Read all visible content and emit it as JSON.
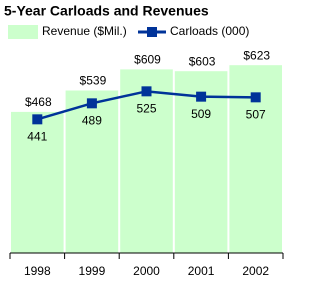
{
  "chart_data": {
    "type": "bar-line",
    "title": "5-Year Carloads and Revenues",
    "categories": [
      "1998",
      "1999",
      "2000",
      "2001",
      "2002"
    ],
    "series": [
      {
        "name": "Revenue ($Mil.)",
        "type": "bar",
        "color": "#ccffcc",
        "values": [
          468,
          539,
          609,
          603,
          623
        ],
        "value_labels": [
          "$468",
          "$539",
          "$609",
          "$603",
          "$623"
        ]
      },
      {
        "name": "Carloads (000)",
        "type": "line",
        "axis": "y2",
        "color": "#003399",
        "values": [
          441,
          489,
          525,
          509,
          507
        ]
      }
    ],
    "ylim": [
      0,
      680
    ],
    "y2lim": [
      40,
      655
    ]
  }
}
